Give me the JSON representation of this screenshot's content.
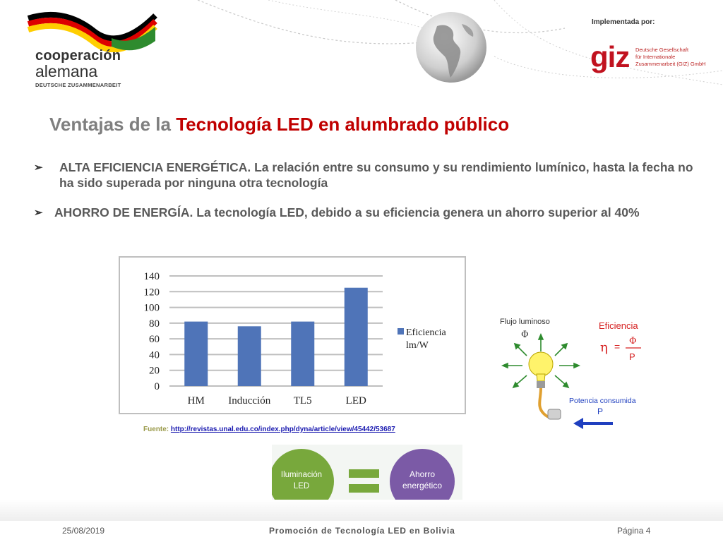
{
  "header": {
    "logo_line1": "cooperación",
    "logo_line2": "alemana",
    "logo_line3": "DEUTSCHE ZUSAMMENARBEIT",
    "implemented_by": "Implementada por:",
    "giz_mark": "giz",
    "giz_line1": "Deutsche Gesellschaft",
    "giz_line2": "für Internationale",
    "giz_line3": "Zusammenarbeit (GIZ) GmbH"
  },
  "title": {
    "part1": "Ventajas de la ",
    "part2": "Tecnología LED en alumbrado público"
  },
  "bullets": [
    {
      "text": "ALTA EFICIENCIA ENERGÉTICA. La relación entre su consumo y su rendimiento lumínico, hasta la fecha no ha sido superada por ninguna otra tecnología"
    },
    {
      "text": "AHORRO DE ENERGÍA. La tecnología LED, debido a su eficiencia genera un ahorro superior al 40%"
    }
  ],
  "chart_data": {
    "type": "bar",
    "categories": [
      "HM",
      "Inducción",
      "TL5",
      "LED"
    ],
    "series": [
      {
        "name": "Eficiencia lm/W",
        "values": [
          82,
          76,
          82,
          125
        ],
        "color": "#4f74b8"
      }
    ],
    "legend_line1": "Eficiencia",
    "legend_line2": "lm/W",
    "yticks": [
      "0",
      "20",
      "40",
      "60",
      "80",
      "100",
      "120",
      "140"
    ],
    "ylim": [
      0,
      140
    ],
    "grid": true,
    "legend_position": "right"
  },
  "source": {
    "label": "Fuente:",
    "url": "http://revistas.unal.edu.co/index.php/dyna/article/view/45442/53687"
  },
  "efficiency_diagram": {
    "flux_label": "Flujo luminoso",
    "phi": "Φ",
    "eff_label": "Eficiencia",
    "eta": "η",
    "equals": "=",
    "numerator": "Φ",
    "denominator": "P",
    "power_label": "Potencia consumida",
    "power_symbol": "P"
  },
  "circles": {
    "left_line1": "Iluminación",
    "left_line2": "LED",
    "right_line1": "Ahorro",
    "right_line2": "energético",
    "left_color": "#78a83c",
    "right_color": "#7b5aa6",
    "equals_color": "#78a83c"
  },
  "footer": {
    "date": "25/08/2019",
    "center": "Promoción de Tecnología LED en Bolivia",
    "page": "Página 4"
  }
}
